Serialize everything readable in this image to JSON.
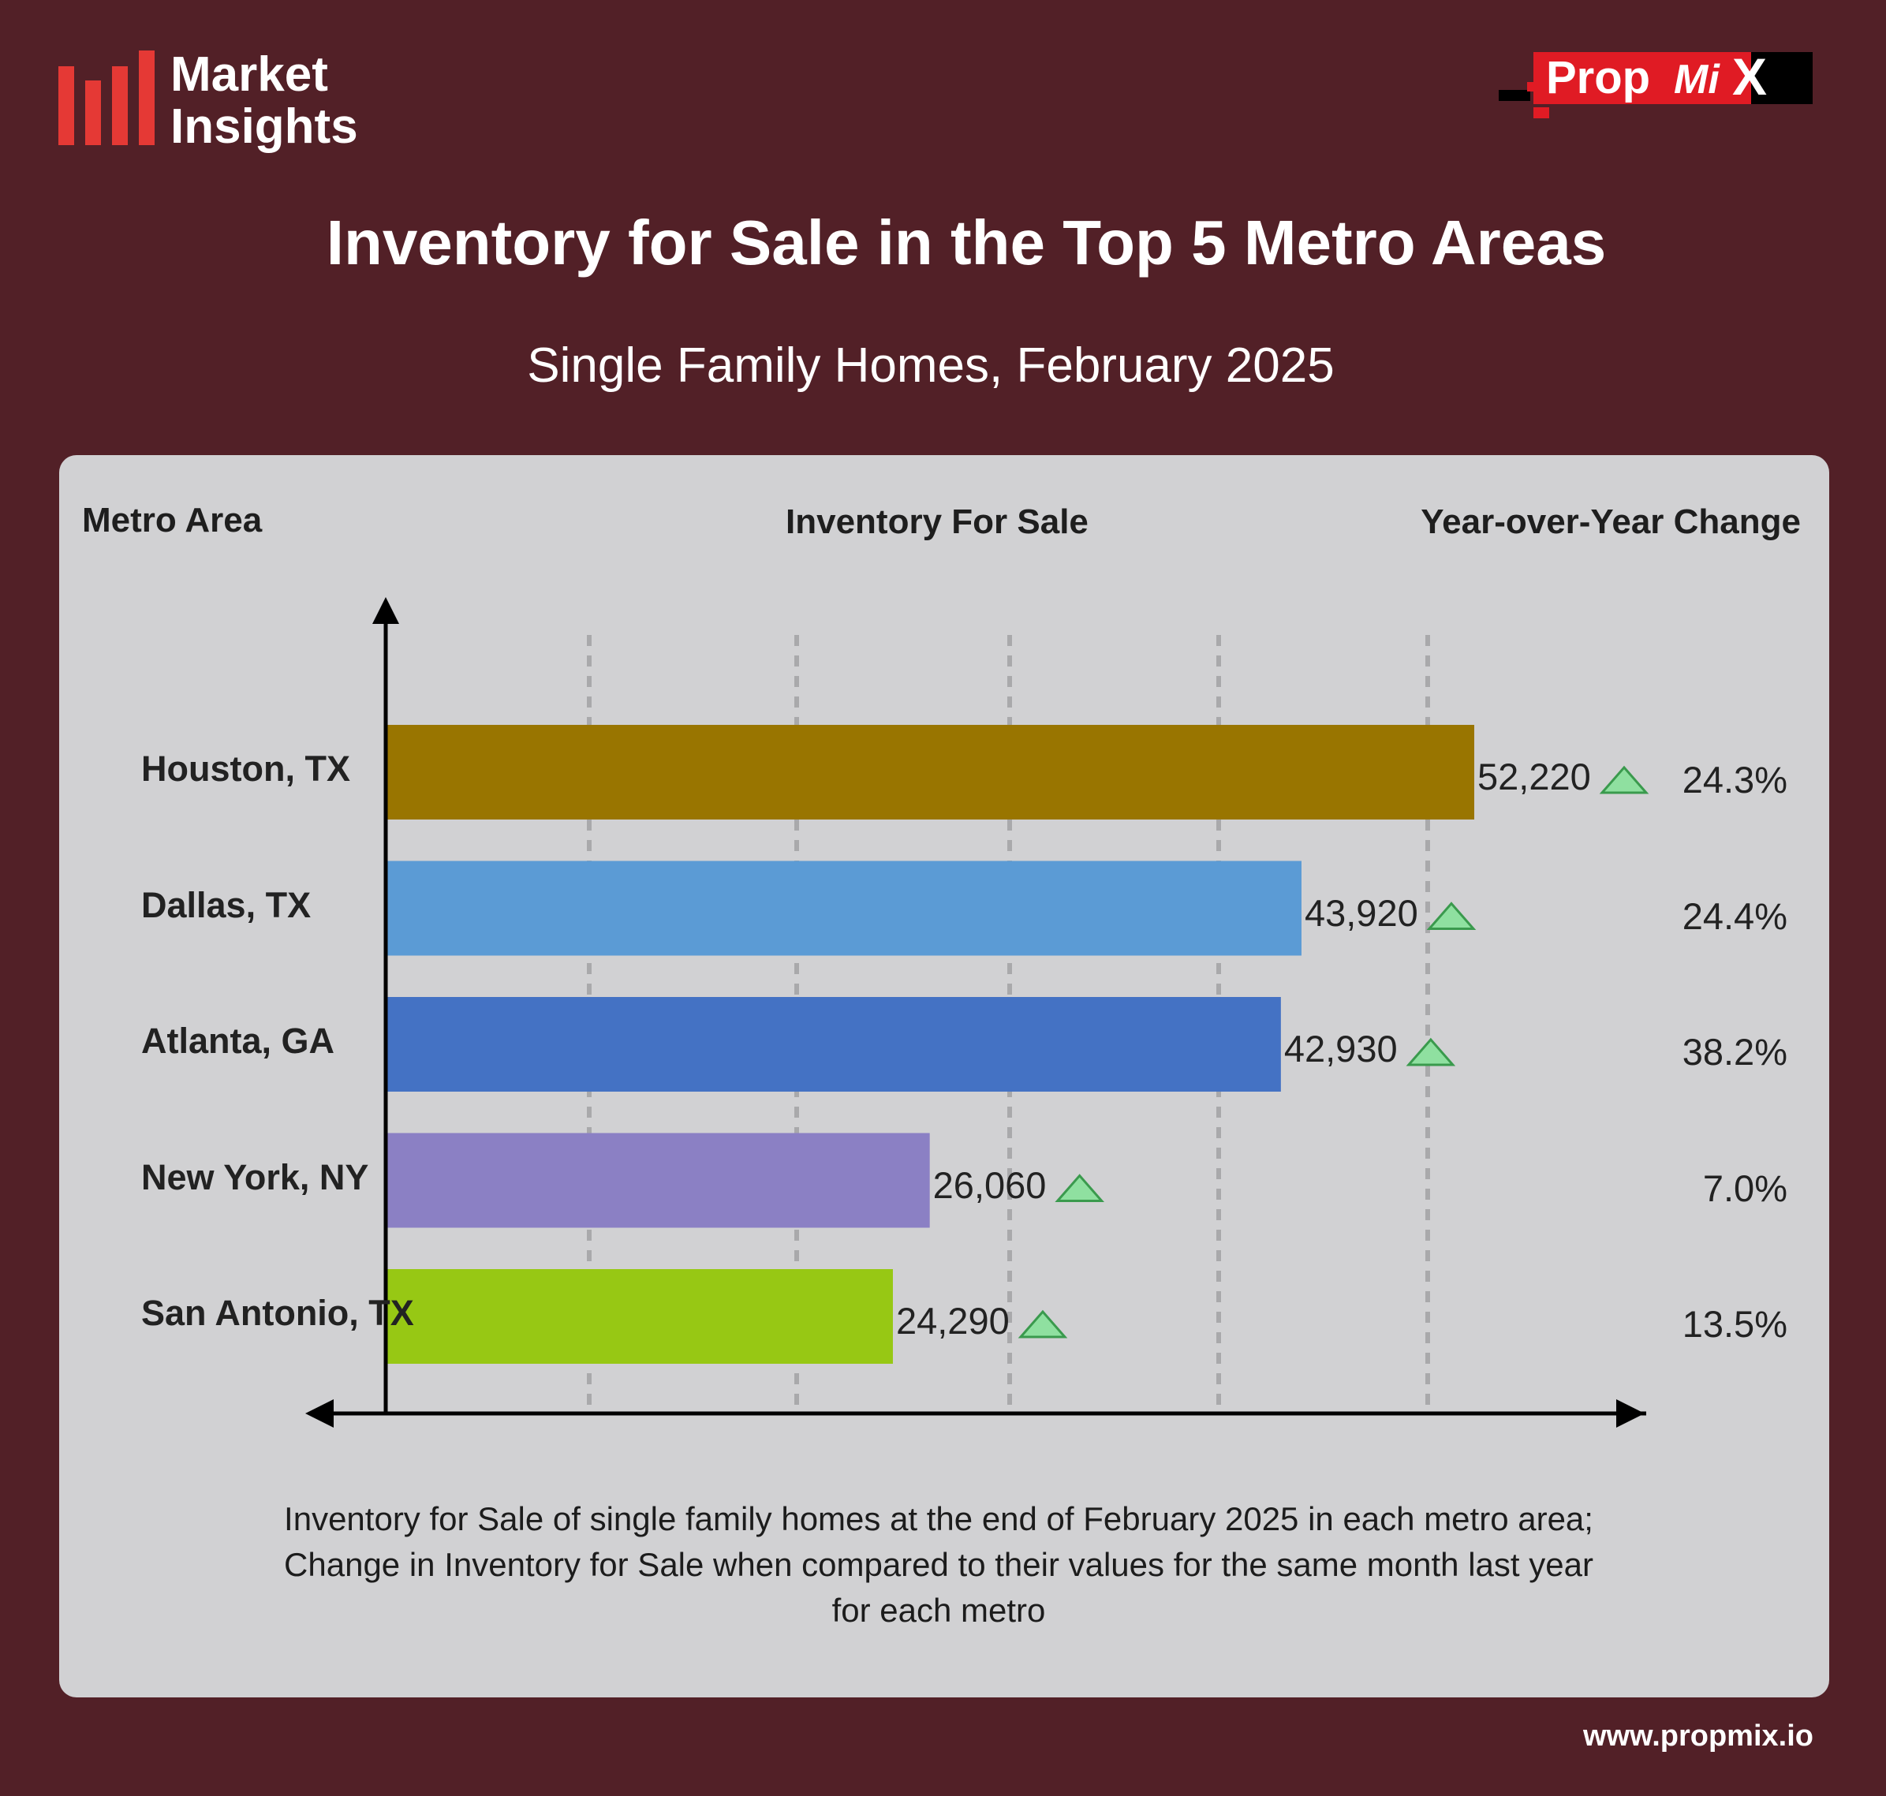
{
  "brand": {
    "line1": "Market",
    "line2": "Insights",
    "icon": "bar-chart-icon",
    "accent_color": "#e53935"
  },
  "logo": {
    "text_main": "Prop",
    "text_mi": "Mi",
    "text_x": "X",
    "red": "#e01b24",
    "black": "#000000"
  },
  "title": "Inventory for Sale in the Top 5 Metro Areas",
  "subtitle": "Single Family Homes, February 2025",
  "columns": {
    "metro": "Metro Area",
    "inventory": "Inventory For Sale",
    "yoy": "Year-over-Year Change"
  },
  "chart_data": {
    "type": "bar",
    "orientation": "horizontal",
    "title": "Inventory for Sale in the Top 5 Metro Areas",
    "subtitle": "Single Family Homes, February 2025",
    "categories": [
      "Houston, TX",
      "Dallas, TX",
      "Atlanta, GA",
      "New York, NY",
      "San Antonio, TX"
    ],
    "values": [
      52220,
      43920,
      42930,
      26060,
      24290
    ],
    "value_labels": [
      "52,220",
      "43,920",
      "42,930",
      "26,060",
      "24,290"
    ],
    "yoy_change": [
      "24.3%",
      "24.4%",
      "38.2%",
      "7.0%",
      "13.5%"
    ],
    "trend": [
      "up",
      "up",
      "up",
      "up",
      "up"
    ],
    "colors": [
      "#997500",
      "#5b9bd5",
      "#4472c4",
      "#8b80c4",
      "#97c814"
    ],
    "trend_color": "#8fe0a0",
    "xlim": [
      0,
      55000
    ],
    "grid": "vertical-dashed",
    "legend": "none"
  },
  "footnote": {
    "line1": "Inventory for Sale of single family homes at the end of February 2025 in each metro area;",
    "line2": "Change in Inventory for Sale when compared to their values for the same month last year",
    "line3": "for each metro"
  },
  "url": "www.propmix.io"
}
